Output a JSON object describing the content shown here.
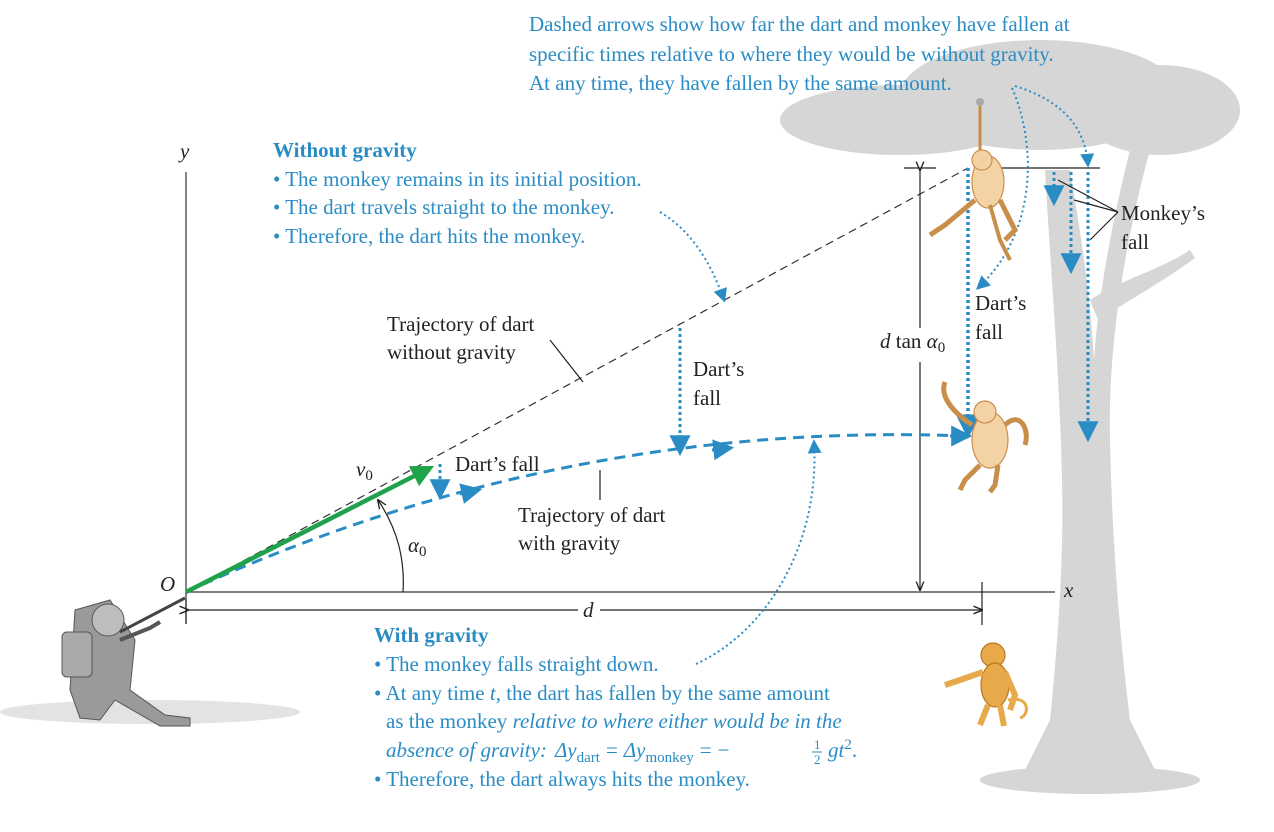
{
  "top_caption": {
    "line1": "Dashed arrows show how far the dart and monkey have fallen at",
    "line2": "specific times relative to where they would be without gravity.",
    "line3": "At any time, they have fallen by the same amount."
  },
  "without_gravity": {
    "heading": "Without gravity",
    "bullet1": "• The monkey remains in its initial position.",
    "bullet2": "• The dart travels straight to the monkey.",
    "bullet3": "• Therefore, the dart hits the monkey."
  },
  "with_gravity": {
    "heading": "With gravity",
    "bullet1": "• The monkey falls straight down.",
    "bullet2_start": "• At any time ",
    "bullet2_t": "t",
    "bullet2_end": ", the dart has fallen by the same amount",
    "line3_plain": "as the monkey ",
    "line3_italic": "relative to where either would be in the",
    "line4_italic": "absence of gravity:",
    "delta_y": "Δy",
    "sub_dart": "dart",
    "equals": "=",
    "sub_monkey": "monkey",
    "minus": "−",
    "half_num": "1",
    "half_den": "2",
    "gt": "gt",
    "exp": "2",
    "period": ".",
    "bullet3": "• Therefore, the dart always hits the monkey."
  },
  "labels": {
    "traj_no_gravity_1": "Trajectory of dart",
    "traj_no_gravity_2": "without gravity",
    "traj_gravity_1": "Trajectory of dart",
    "traj_gravity_2": "with gravity",
    "darts_fall_inline": "Dart’s fall",
    "darts_fall_mid_1": "Dart’s",
    "darts_fall_mid_2": "fall",
    "darts_fall_right_1": "Dart’s",
    "darts_fall_right_2": "fall",
    "monkeys_fall_1": "Monkey’s",
    "monkeys_fall_2": "fall",
    "d_tan": "d",
    "tan": " tan ",
    "alpha": "α",
    "alpha_sub": "0",
    "v": "v",
    "v_sub": "0",
    "origin": "O",
    "axis_x": "x",
    "axis_y": "y",
    "distance_d": "d"
  },
  "colors": {
    "blue": "#2a8cc4",
    "green": "#1fa34a",
    "monkey": "#e8a94a",
    "tree": "#d4d4d4",
    "hunter": "#888888"
  }
}
